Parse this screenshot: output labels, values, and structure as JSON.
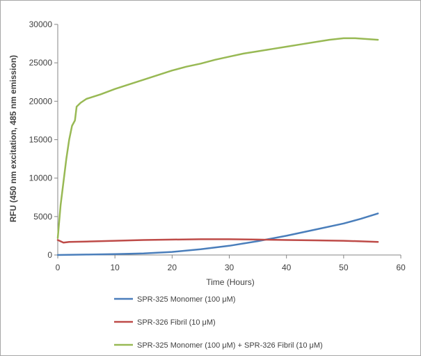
{
  "chart_data": {
    "type": "line",
    "title": "",
    "xlabel": "Time (Hours)",
    "ylabel": "RFU (450 nm excitation, 485 nm emission)",
    "xlim": [
      0,
      60
    ],
    "ylim": [
      0,
      30000
    ],
    "x_ticks": [
      0,
      10,
      20,
      30,
      40,
      50,
      60
    ],
    "y_ticks": [
      0,
      5000,
      10000,
      15000,
      20000,
      25000,
      30000
    ],
    "grid": false,
    "legend_position": "bottom",
    "series": [
      {
        "name": "SPR-325 Monomer (100 μM)",
        "color": "#4a7ebb",
        "points": [
          [
            0,
            0
          ],
          [
            5,
            50
          ],
          [
            10,
            120
          ],
          [
            15,
            200
          ],
          [
            20,
            400
          ],
          [
            25,
            750
          ],
          [
            30,
            1200
          ],
          [
            35,
            1800
          ],
          [
            40,
            2500
          ],
          [
            45,
            3300
          ],
          [
            50,
            4100
          ],
          [
            53,
            4700
          ],
          [
            56,
            5400
          ]
        ]
      },
      {
        "name": "SPR-326 Fibril (10 μM)",
        "color": "#be4b48",
        "points": [
          [
            0,
            1950
          ],
          [
            1,
            1600
          ],
          [
            2,
            1700
          ],
          [
            5,
            1750
          ],
          [
            10,
            1850
          ],
          [
            15,
            1950
          ],
          [
            20,
            2000
          ],
          [
            25,
            2050
          ],
          [
            30,
            2050
          ],
          [
            35,
            2000
          ],
          [
            40,
            1950
          ],
          [
            45,
            1900
          ],
          [
            50,
            1850
          ],
          [
            56,
            1700
          ]
        ]
      },
      {
        "name": "SPR-325 Monomer (100 μM) + SPR-326 Fibril (10 μM)",
        "color": "#98b954",
        "points": [
          [
            0,
            2200
          ],
          [
            0.5,
            6500
          ],
          [
            1,
            9500
          ],
          [
            1.5,
            12500
          ],
          [
            2,
            15000
          ],
          [
            2.5,
            16800
          ],
          [
            3,
            17500
          ],
          [
            3.3,
            19300
          ],
          [
            4,
            19800
          ],
          [
            5,
            20300
          ],
          [
            7.5,
            20900
          ],
          [
            10,
            21600
          ],
          [
            12.5,
            22200
          ],
          [
            15,
            22800
          ],
          [
            17.5,
            23400
          ],
          [
            20,
            24000
          ],
          [
            22.5,
            24500
          ],
          [
            25,
            24900
          ],
          [
            27.5,
            25400
          ],
          [
            30,
            25800
          ],
          [
            32.5,
            26200
          ],
          [
            35,
            26500
          ],
          [
            37.5,
            26800
          ],
          [
            40,
            27100
          ],
          [
            42.5,
            27400
          ],
          [
            45,
            27700
          ],
          [
            47.5,
            28000
          ],
          [
            50,
            28200
          ],
          [
            52,
            28200
          ],
          [
            54,
            28100
          ],
          [
            56,
            28000
          ]
        ]
      }
    ]
  }
}
